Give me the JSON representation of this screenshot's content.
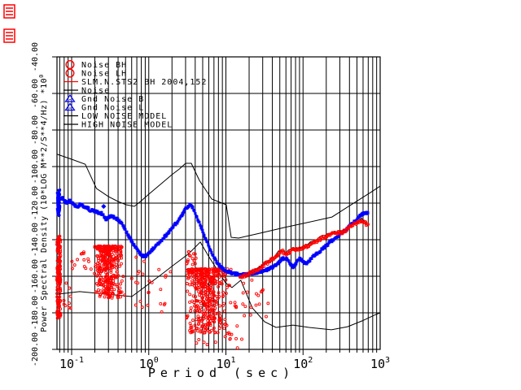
{
  "window": {
    "background": "#ffffff",
    "decor_color": "#ff0000",
    "glyphs": [
      "striped-box",
      "striped-box"
    ]
  },
  "colors": {
    "red": "#ff0000",
    "blue": "#0000ff",
    "black": "#000000"
  },
  "legend": {
    "items": [
      {
        "label": "Noise BH",
        "symbol": "circle",
        "color": "#ff0000"
      },
      {
        "label": "Noise LH",
        "symbol": "circle",
        "color": "#ff0000"
      },
      {
        "label": "SLM.N.STS2 BH 2004,152",
        "symbol": "dash",
        "color": "#ff0000"
      },
      {
        "label": "Noise",
        "symbol": "dash",
        "color": "#000000"
      },
      {
        "label": "Gnd Noise B",
        "symbol": "triangle",
        "color": "#0000ff"
      },
      {
        "label": "Gnd Noise L",
        "symbol": "triangle",
        "color": "#0000ff"
      },
      {
        "label": "LOW NOISE MODEL",
        "symbol": "dash",
        "color": "#000000"
      },
      {
        "label": "HIGH NOISE MODEL",
        "symbol": "dash",
        "color": "#000000"
      }
    ]
  },
  "axes": {
    "x": {
      "title": "Period (sec)",
      "scale": "log",
      "ticks": [
        {
          "base": "10",
          "exp": "-1",
          "value": 0.1
        },
        {
          "base": "10",
          "exp": "0",
          "value": 1
        },
        {
          "base": "10",
          "exp": "1",
          "value": 10
        },
        {
          "base": "10",
          "exp": "2",
          "value": 100
        },
        {
          "base": "10",
          "exp": "3",
          "value": 1000
        }
      ]
    },
    "y": {
      "title": "Power Spectral Density (10*LOG M**2/S**4/Hz)",
      "multiplier_base": "*10",
      "multiplier_exp": "0",
      "ticks": [
        {
          "label": "-200.00",
          "value": -200
        },
        {
          "label": "-180.00",
          "value": -180
        },
        {
          "label": "-160.00",
          "value": -160
        },
        {
          "label": "-140.00",
          "value": -140
        },
        {
          "label": "-120.00",
          "value": -120
        },
        {
          "label": "-100.00",
          "value": -100
        },
        {
          "label": "-80.00",
          "value": -80
        },
        {
          "label": "-60.00",
          "value": -60
        },
        {
          "label": "-40.00",
          "value": -40
        }
      ]
    }
  },
  "chart_data": {
    "type": "line",
    "title": "SLM.N.STS2 BH 2004,152",
    "xlabel": "Period (sec)",
    "ylabel": "Power Spectral Density (10*LOG M**2/S**4/Hz) *10^0",
    "x_scale": "log",
    "x_range": [
      0.0646,
      1000
    ],
    "y_range": [
      -200,
      -40
    ],
    "y_tick_step": 20,
    "grid": true,
    "legend_position": "top-left-inside",
    "series": [
      {
        "name": "Gnd Noise B",
        "color": "#0000ff",
        "style": "thick-jitter-band",
        "points": [
          [
            0.066,
            -116.5
          ],
          [
            0.07,
            -118
          ],
          [
            0.075,
            -117
          ],
          [
            0.081,
            -119
          ],
          [
            0.087,
            -120
          ],
          [
            0.093,
            -118.8
          ],
          [
            0.1,
            -119.3
          ],
          [
            0.108,
            -121
          ],
          [
            0.117,
            -122.5
          ],
          [
            0.126,
            -121
          ],
          [
            0.136,
            -120.6
          ],
          [
            0.147,
            -122.3
          ],
          [
            0.159,
            -122.4
          ],
          [
            0.172,
            -123.7
          ],
          [
            0.186,
            -124.1
          ],
          [
            0.201,
            -124.5
          ],
          [
            0.217,
            -125
          ],
          [
            0.235,
            -125.4
          ],
          [
            0.254,
            -126
          ],
          [
            0.27,
            -128.2
          ],
          [
            0.285,
            -128.9
          ],
          [
            0.305,
            -127.5
          ],
          [
            0.33,
            -127.2
          ],
          [
            0.357,
            -128
          ],
          [
            0.386,
            -128.5
          ],
          [
            0.418,
            -129.8
          ],
          [
            0.452,
            -131.5
          ],
          [
            0.489,
            -134
          ],
          [
            0.529,
            -136.8
          ],
          [
            0.572,
            -139.4
          ],
          [
            0.619,
            -141.9
          ],
          [
            0.67,
            -144
          ],
          [
            0.724,
            -146.1
          ],
          [
            0.783,
            -147.9
          ],
          [
            0.847,
            -148.9
          ],
          [
            0.916,
            -148.9
          ],
          [
            0.991,
            -147.5
          ],
          [
            1.07,
            -146.2
          ],
          [
            1.16,
            -144.6
          ],
          [
            1.25,
            -143.2
          ],
          [
            1.36,
            -141.7
          ],
          [
            1.47,
            -140.2
          ],
          [
            1.59,
            -138.6
          ],
          [
            1.72,
            -137
          ],
          [
            1.86,
            -135.4
          ],
          [
            2.01,
            -133.6
          ],
          [
            2.17,
            -131.7
          ],
          [
            2.35,
            -130.7
          ],
          [
            2.55,
            -128.2
          ],
          [
            2.75,
            -126
          ],
          [
            2.98,
            -123.4
          ],
          [
            3.22,
            -121.8
          ],
          [
            3.48,
            -120.9
          ],
          [
            3.77,
            -123
          ],
          [
            4.08,
            -126.3
          ],
          [
            4.41,
            -129.6
          ],
          [
            4.77,
            -133.2
          ],
          [
            5.16,
            -136.9
          ],
          [
            5.58,
            -140.5
          ],
          [
            6.04,
            -144
          ],
          [
            6.53,
            -147
          ],
          [
            7.07,
            -150
          ],
          [
            7.65,
            -152.3
          ],
          [
            8.27,
            -154
          ],
          [
            8.95,
            -155.5
          ],
          [
            9.68,
            -156.5
          ],
          [
            10.5,
            -157.4
          ],
          [
            11.7,
            -158.1
          ],
          [
            13.2,
            -158.7
          ],
          [
            14.9,
            -159
          ],
          [
            16.8,
            -159.1
          ],
          [
            19,
            -158.9
          ],
          [
            21.4,
            -158.6
          ],
          [
            24.2,
            -158.1
          ],
          [
            27.3,
            -157.7
          ],
          [
            30.8,
            -157
          ],
          [
            34.8,
            -156.3
          ],
          [
            39.3,
            -155.2
          ],
          [
            44.4,
            -154
          ],
          [
            50.1,
            -151.7
          ],
          [
            54.5,
            -150.5
          ],
          [
            59.2,
            -149.9
          ],
          [
            64.3,
            -151.6
          ],
          [
            69.9,
            -153.8
          ],
          [
            74,
            -155.1
          ],
          [
            79.2,
            -153.5
          ],
          [
            84.7,
            -152
          ],
          [
            90.6,
            -150.3
          ],
          [
            96.9,
            -151.3
          ],
          [
            104,
            -152.6
          ],
          [
            111,
            -153.2
          ],
          [
            119,
            -151.9
          ],
          [
            127,
            -150.3
          ],
          [
            136,
            -149
          ],
          [
            146,
            -148.1
          ],
          [
            156,
            -147.1
          ],
          [
            167,
            -146.1
          ],
          [
            179,
            -145
          ],
          [
            191,
            -144
          ],
          [
            205,
            -142.9
          ],
          [
            219,
            -141.8
          ],
          [
            234,
            -140.8
          ],
          [
            251,
            -139.9
          ],
          [
            268,
            -139
          ],
          [
            287,
            -138
          ],
          [
            307,
            -137
          ],
          [
            329,
            -135.9
          ],
          [
            352,
            -134.8
          ],
          [
            377,
            -133.7
          ],
          [
            403,
            -132.6
          ],
          [
            432,
            -131.4
          ],
          [
            462,
            -130.2
          ],
          [
            494,
            -128.9
          ],
          [
            529,
            -127.5
          ],
          [
            566,
            -126.4
          ],
          [
            606,
            -125.9
          ],
          [
            648,
            -125.4
          ],
          [
            694,
            -125.7
          ]
        ]
      },
      {
        "name": "Noise LH",
        "color": "#ff0000",
        "style": "open-circle-trace",
        "points": [
          [
            15.3,
            -160.4
          ],
          [
            17,
            -159.8
          ],
          [
            19,
            -159.1
          ],
          [
            21,
            -158.2
          ],
          [
            23.4,
            -157.2
          ],
          [
            26.1,
            -156
          ],
          [
            29.1,
            -154.7
          ],
          [
            32.4,
            -153.3
          ],
          [
            36.1,
            -152
          ],
          [
            40.3,
            -150.5
          ],
          [
            44.9,
            -148.9
          ],
          [
            50,
            -146.9
          ],
          [
            54,
            -146.2
          ],
          [
            58,
            -147.4
          ],
          [
            61,
            -148
          ],
          [
            65,
            -147
          ],
          [
            69.8,
            -146.1
          ],
          [
            77.3,
            -145.4
          ],
          [
            86,
            -145.3
          ],
          [
            96,
            -144.8
          ],
          [
            107,
            -144.1
          ],
          [
            119,
            -143.2
          ],
          [
            133,
            -142
          ],
          [
            148,
            -140.9
          ],
          [
            165,
            -139.8
          ],
          [
            184,
            -138.8
          ],
          [
            205,
            -137.8
          ],
          [
            228,
            -137.1
          ],
          [
            254,
            -136.4
          ],
          [
            275,
            -136.1
          ],
          [
            298,
            -136.2
          ],
          [
            320,
            -136.4
          ],
          [
            344,
            -135.4
          ],
          [
            370,
            -134.3
          ],
          [
            398,
            -133.2
          ],
          [
            428,
            -132.3
          ],
          [
            460,
            -131.6
          ],
          [
            494,
            -130.8
          ],
          [
            530,
            -130.1
          ],
          [
            556,
            -129.6
          ],
          [
            580,
            -129.4
          ],
          [
            600,
            -129.9
          ],
          [
            622,
            -130.4
          ],
          [
            645,
            -131
          ],
          [
            668,
            -131.7
          ],
          [
            692,
            -132.4
          ]
        ]
      },
      {
        "name": "Noise",
        "color": "#000000",
        "style": "thin-jitter-companion",
        "base_series": 1,
        "offset_db": 0.9
      },
      {
        "name": "LOW NOISE MODEL",
        "color": "#000000",
        "style": "thin-line",
        "points": [
          [
            0.065,
            -169.8
          ],
          [
            0.127,
            -168.4
          ],
          [
            0.292,
            -169.8
          ],
          [
            0.603,
            -171.1
          ],
          [
            0.888,
            -165.8
          ],
          [
            1.45,
            -159.1
          ],
          [
            2.19,
            -153.3
          ],
          [
            3.31,
            -147.6
          ],
          [
            4.65,
            -141.3
          ],
          [
            5.93,
            -148.9
          ],
          [
            9.9,
            -163.6
          ],
          [
            12,
            -166.2
          ],
          [
            15.6,
            -162.2
          ],
          [
            22,
            -177.3
          ],
          [
            31.7,
            -184.9
          ],
          [
            44.6,
            -188
          ],
          [
            74,
            -186.7
          ],
          [
            120,
            -188
          ],
          [
            233,
            -189.3
          ],
          [
            378,
            -187.6
          ],
          [
            584,
            -184.4
          ],
          [
            840,
            -181.3
          ],
          [
            1000,
            -180
          ]
        ]
      },
      {
        "name": "HIGH NOISE MODEL",
        "color": "#000000",
        "style": "thin-line",
        "points": [
          [
            0.065,
            -93.3
          ],
          [
            0.1,
            -96
          ],
          [
            0.15,
            -98.7
          ],
          [
            0.21,
            -112
          ],
          [
            0.3,
            -116.4
          ],
          [
            0.4,
            -119.1
          ],
          [
            0.51,
            -120.9
          ],
          [
            0.65,
            -121.8
          ],
          [
            0.8,
            -118.7
          ],
          [
            1,
            -115.1
          ],
          [
            1.5,
            -108.9
          ],
          [
            2,
            -104.4
          ],
          [
            2.5,
            -101.3
          ],
          [
            3,
            -98.2
          ],
          [
            3.56,
            -98.2
          ],
          [
            4.54,
            -107.6
          ],
          [
            6.55,
            -117.8
          ],
          [
            10.1,
            -120.9
          ],
          [
            11.7,
            -138.7
          ],
          [
            14.6,
            -139.1
          ],
          [
            28,
            -136.4
          ],
          [
            58,
            -133.3
          ],
          [
            120,
            -130.4
          ],
          [
            237,
            -127.6
          ],
          [
            406,
            -121.3
          ],
          [
            748,
            -114.2
          ],
          [
            1000,
            -110.7
          ]
        ]
      }
    ],
    "scatter_clusters": [
      {
        "name": "blue-left-edge-smear",
        "color": "#0000ff",
        "marker": "square",
        "p": [
          0.0646,
          0.071
        ],
        "db": [
          -128,
          -112.5
        ],
        "n": 90,
        "dist": "uniform"
      },
      {
        "name": "red-left-edge-smear",
        "color": "#ff0000",
        "marker": "circle",
        "p": [
          0.0646,
          0.072
        ],
        "db": [
          -183,
          -137
        ],
        "n": 150,
        "dist": "uniform"
      },
      {
        "name": "red-left-sparse",
        "color": "#ff0000",
        "marker": "circle",
        "p": [
          0.079,
          0.099
        ],
        "db": [
          -184,
          -163
        ],
        "n": 9,
        "dist": "uniform"
      },
      {
        "name": "red-cluster-a",
        "color": "#ff0000",
        "marker": "circle",
        "p": [
          0.1,
          0.18
        ],
        "db": [
          -157,
          -146
        ],
        "n": 14,
        "dist": "uniform"
      },
      {
        "name": "red-cluster-b",
        "color": "#ff0000",
        "marker": "circle",
        "p": [
          0.193,
          0.473
        ],
        "db": [
          -172,
          -143.5
        ],
        "n": 360,
        "dist": "center"
      },
      {
        "name": "red-cluster-b-tail",
        "color": "#ff0000",
        "marker": "circle",
        "p": [
          0.48,
          2.0
        ],
        "db": [
          -186,
          -149
        ],
        "n": 26,
        "dist": "uniform"
      },
      {
        "name": "red-dots-near-blue",
        "color": "#ff0000",
        "marker": "circle",
        "p": [
          3.0,
          4.1
        ],
        "db": [
          -156,
          -146.5
        ],
        "n": 16,
        "dist": "uniform"
      },
      {
        "name": "red-cluster-c",
        "color": "#ff0000",
        "marker": "circle",
        "p": [
          3.0,
          12.3
        ],
        "db": [
          -192,
          -156
        ],
        "n": 430,
        "dist": "center"
      },
      {
        "name": "red-cluster-c-below",
        "color": "#ff0000",
        "marker": "circle",
        "p": [
          4.0,
          17
        ],
        "db": [
          -200,
          -176
        ],
        "n": 28,
        "dist": "uniform"
      },
      {
        "name": "red-cluster-c-right",
        "color": "#ff0000",
        "marker": "circle",
        "p": [
          13,
          36
        ],
        "db": [
          -186,
          -162
        ],
        "n": 20,
        "dist": "uniform"
      },
      {
        "name": "blue-outlier-diamond",
        "color": "#0000ff",
        "marker": "diamond",
        "points": [
          [
            0.26,
            -121.8
          ]
        ]
      }
    ]
  }
}
